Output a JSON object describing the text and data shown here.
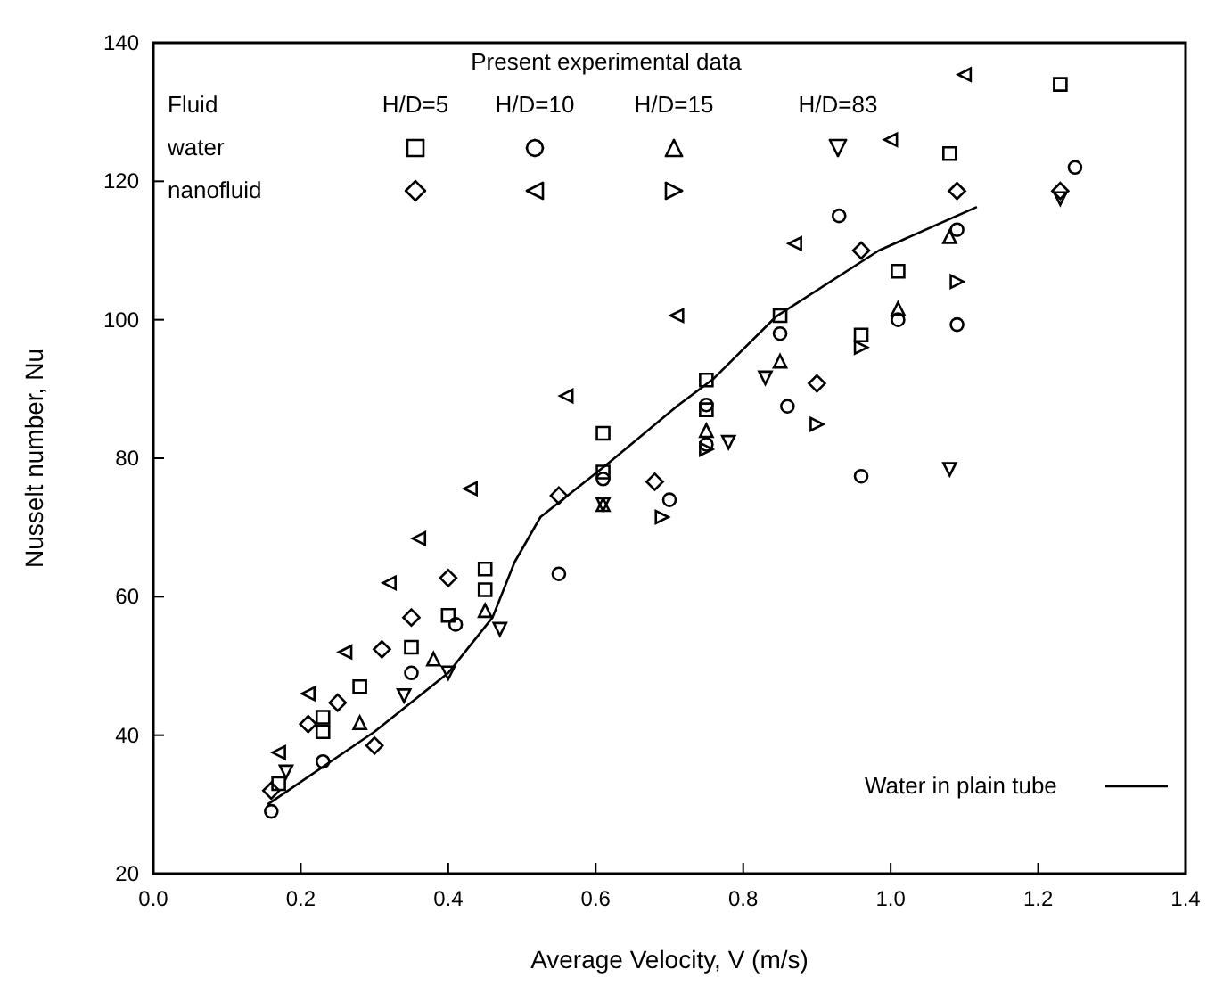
{
  "chart_data": {
    "type": "scatter",
    "xlabel": "Average Velocity, V (m/s)",
    "ylabel": "Nusselt number, Nu",
    "xlim": [
      0,
      1.4
    ],
    "ylim": [
      20,
      140
    ],
    "xticks": [
      {
        "value": 0,
        "label": "0.0"
      },
      {
        "value": 0.2,
        "label": "0.2"
      },
      {
        "value": 0.4,
        "label": "0.4"
      },
      {
        "value": 0.6,
        "label": "0.6"
      },
      {
        "value": 0.8,
        "label": "0.8"
      },
      {
        "value": 1,
        "label": "1.0"
      },
      {
        "value": 1.2,
        "label": "1.2"
      },
      {
        "value": 1.4,
        "label": "1.4"
      }
    ],
    "yticks": [
      20,
      40,
      60,
      80,
      100,
      120,
      140
    ],
    "grid": false,
    "legend": "bottom right",
    "annotations": [
      "Present experimental data",
      "Fluid",
      "H/D=5",
      "H/D=10",
      "H/D=15",
      "H/D=83",
      "water",
      "nanofluid"
    ],
    "series": [
      {
        "color": "#000000",
        "marker": "square",
        "x": [
          0.17,
          0.23,
          0.23,
          0.28,
          0.35,
          0.4,
          0.45,
          0.45,
          0.61,
          0.61,
          0.75,
          0.75,
          0.85,
          0.96,
          1.01,
          1.08,
          1.23
        ],
        "values": [
          33,
          40.5,
          42.6,
          47,
          52.7,
          57.3,
          61,
          64,
          78,
          83.6,
          87,
          91.3,
          100.6,
          97.8,
          107,
          124,
          134
        ]
      },
      {
        "color": "#000000",
        "marker": "circle",
        "x": [
          0.16,
          0.23,
          0.35,
          0.41,
          0.55,
          0.61,
          0.7,
          0.75,
          0.75,
          0.85,
          0.86,
          0.93,
          0.96,
          1.01,
          1.09,
          1.09,
          1.25
        ],
        "values": [
          29,
          36.2,
          49,
          56,
          63.3,
          77,
          74,
          82,
          87.7,
          98,
          87.5,
          115,
          77.4,
          100,
          99.3,
          113,
          122
        ]
      },
      {
        "color": "#000000",
        "marker": "triangle",
        "x": [
          0.28,
          0.38,
          0.45,
          0.61,
          0.75,
          0.85,
          1.01,
          1.08
        ],
        "values": [
          41.8,
          51,
          58,
          73.3,
          84,
          94,
          101.6,
          112
        ]
      },
      {
        "color": "#000000",
        "marker": "triangle-down",
        "x": [
          0.18,
          0.34,
          0.4,
          0.47,
          0.61,
          0.78,
          0.83,
          1.08,
          1.23
        ],
        "values": [
          34.7,
          45.7,
          49,
          55.3,
          73.3,
          82.3,
          91.6,
          78.4,
          117.5
        ]
      },
      {
        "color": "#000000",
        "marker": "diamond",
        "x": [
          0.16,
          0.21,
          0.25,
          0.3,
          0.31,
          0.35,
          0.4,
          0.55,
          0.68,
          0.9,
          0.96,
          1.09,
          1.23
        ],
        "values": [
          32,
          41.6,
          44.7,
          38.5,
          52.4,
          57,
          62.7,
          74.6,
          76.6,
          90.8,
          110,
          118.6,
          118.6
        ]
      },
      {
        "color": "#000000",
        "marker": "triangle-left",
        "x": [
          0.17,
          0.21,
          0.26,
          0.32,
          0.36,
          0.43,
          0.56,
          0.71,
          0.87,
          1,
          1.1
        ],
        "values": [
          37.5,
          46,
          52,
          62,
          68.4,
          75.6,
          89,
          100.6,
          111,
          126,
          135.4
        ]
      },
      {
        "color": "#000000",
        "marker": "triangle-right",
        "x": [
          0.69,
          0.75,
          0.9,
          0.96,
          1.09
        ],
        "values": [
          71.5,
          81.3,
          84.9,
          96,
          105.5
        ]
      },
      {
        "type": "line",
        "name": "Water in plain tube",
        "color": "#000000",
        "marker": "none",
        "line_style": "solid",
        "x": [
          0.155,
          0.3,
          0.4,
          0.46,
          0.49,
          0.525,
          0.614,
          0.71,
          0.76,
          0.845,
          0.984,
          1.117
        ],
        "values": [
          30,
          40.5,
          49,
          57,
          65,
          71.5,
          79,
          87.5,
          91.5,
          100.5,
          110,
          116.3
        ]
      }
    ]
  }
}
